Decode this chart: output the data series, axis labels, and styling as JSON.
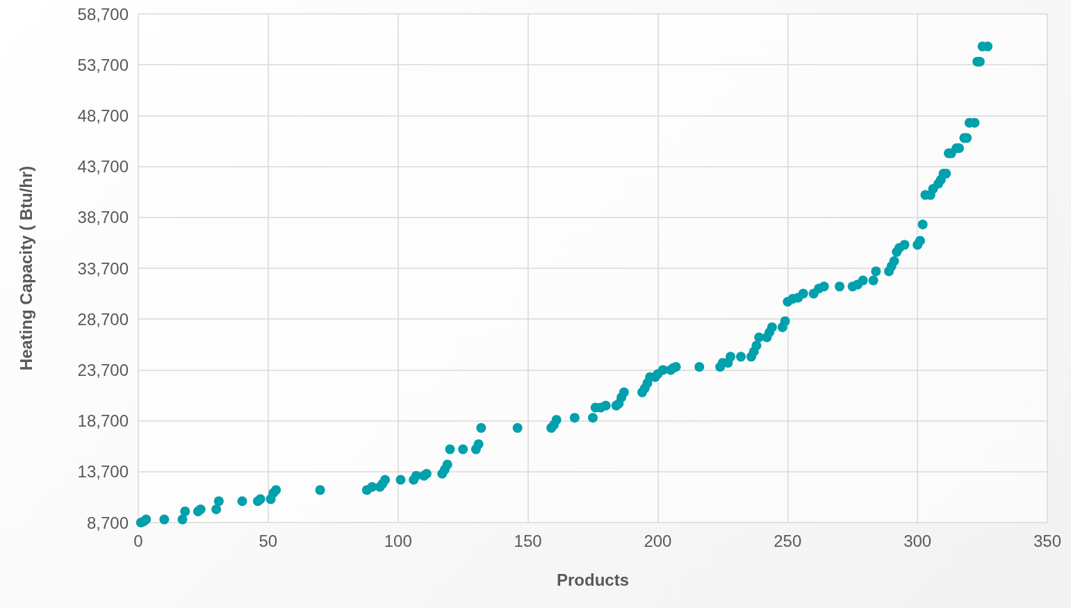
{
  "chart_data": {
    "type": "scatter",
    "xlabel": "Products",
    "ylabel": "Heating Capacity ( Btu/hr)",
    "xlim": [
      0,
      350
    ],
    "xticks": [
      0,
      50,
      100,
      150,
      200,
      250,
      300,
      350
    ],
    "ylim": [
      8700,
      58700
    ],
    "yticks": [
      {
        "value": 8700,
        "label": "8,700"
      },
      {
        "value": 13700,
        "label": "13,700"
      },
      {
        "value": 18700,
        "label": "18,700"
      },
      {
        "value": 23700,
        "label": "23,700"
      },
      {
        "value": 28700,
        "label": "28,700"
      },
      {
        "value": 33700,
        "label": "33,700"
      },
      {
        "value": 38700,
        "label": "38,700"
      },
      {
        "value": 43700,
        "label": "43,700"
      },
      {
        "value": 48700,
        "label": "48,700"
      },
      {
        "value": 53700,
        "label": "53,700"
      },
      {
        "value": 58700,
        "label": "58,700"
      }
    ],
    "grid": true,
    "marker": "circle",
    "series": [
      {
        "color": "#00a0ac",
        "x": [
          1,
          2,
          3,
          10,
          17,
          18,
          23,
          24,
          30,
          31,
          40,
          46,
          47,
          51,
          52,
          53,
          70,
          88,
          90,
          93,
          94,
          95,
          101,
          106,
          107,
          110,
          111,
          117,
          118,
          119,
          120,
          125,
          130,
          131,
          132,
          146,
          159,
          160,
          161,
          168,
          175,
          176,
          178,
          180,
          184,
          185,
          186,
          187,
          194,
          195,
          196,
          197,
          199,
          200,
          202,
          205,
          206,
          207,
          216,
          224,
          225,
          227,
          228,
          232,
          236,
          237,
          238,
          239,
          242,
          243,
          244,
          248,
          249,
          250,
          252,
          254,
          256,
          260,
          262,
          264,
          270,
          275,
          277,
          279,
          283,
          284,
          289,
          290,
          291,
          292,
          293,
          295,
          300,
          301,
          302,
          303,
          305,
          306,
          308,
          309,
          310,
          311,
          312,
          313,
          315,
          316,
          318,
          319,
          320,
          322,
          323,
          324,
          325,
          327
        ],
        "values": [
          8700,
          8800,
          9000,
          9000,
          9000,
          9800,
          9800,
          10000,
          10000,
          10800,
          10800,
          10800,
          11000,
          11000,
          11600,
          11900,
          11900,
          11900,
          12200,
          12200,
          12500,
          12900,
          12900,
          12900,
          13300,
          13300,
          13500,
          13500,
          13900,
          14400,
          15900,
          15900,
          15900,
          16400,
          18000,
          18000,
          18000,
          18300,
          18800,
          19000,
          19000,
          20000,
          20000,
          20200,
          20200,
          20400,
          21000,
          21500,
          21500,
          21900,
          22400,
          23000,
          23000,
          23300,
          23700,
          23700,
          23900,
          24000,
          24000,
          24000,
          24400,
          24400,
          25000,
          25000,
          25000,
          25500,
          26100,
          26900,
          26900,
          27400,
          27900,
          27900,
          28500,
          30400,
          30700,
          30800,
          31200,
          31200,
          31700,
          31900,
          31900,
          31900,
          32100,
          32500,
          32500,
          33400,
          33400,
          33900,
          34400,
          35300,
          35700,
          36000,
          36000,
          36400,
          38000,
          40900,
          40900,
          41500,
          42000,
          42400,
          43000,
          43000,
          45000,
          45000,
          45500,
          45500,
          46500,
          46500,
          48000,
          48000,
          54000,
          54000,
          55500,
          55500
        ]
      }
    ]
  }
}
